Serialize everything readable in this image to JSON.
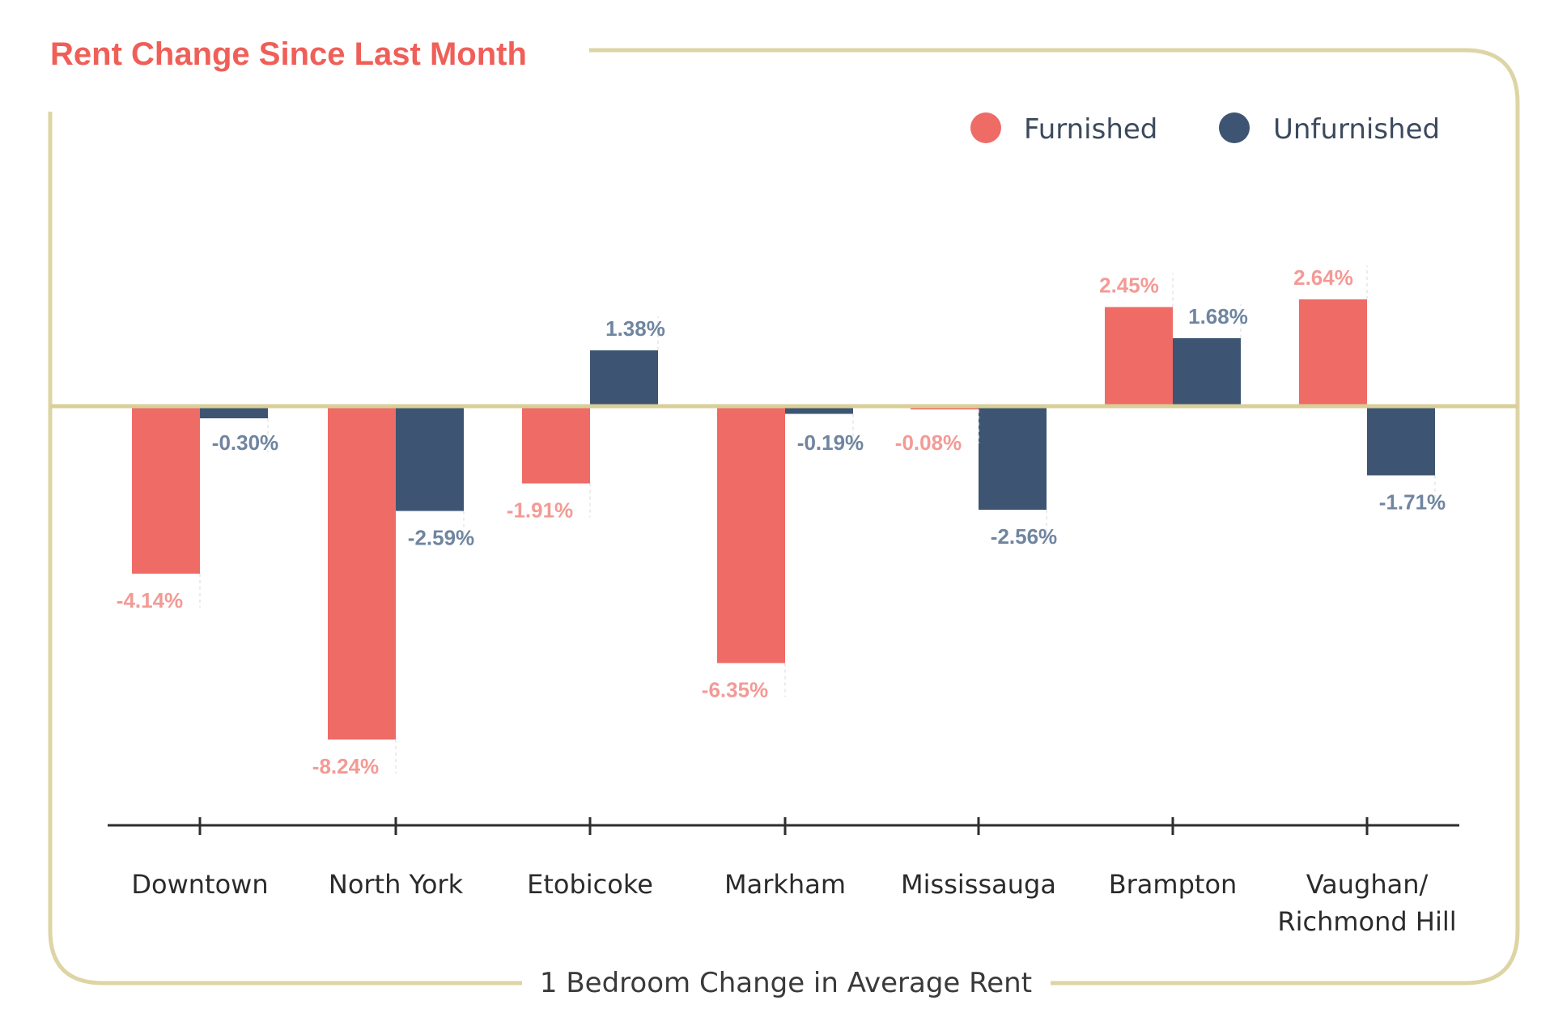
{
  "chart_data": {
    "type": "bar",
    "title": "Rent Change Since Last Month",
    "xlabel": "1 Bedroom Change in Average Rent",
    "categories": [
      [
        "Downtown"
      ],
      [
        "North York"
      ],
      [
        "Etobicoke"
      ],
      [
        "Markham"
      ],
      [
        "Mississauga"
      ],
      [
        "Brampton"
      ],
      [
        "Vaughan/",
        "Richmond Hill"
      ]
    ],
    "series": [
      {
        "name": "Furnished",
        "color": "#ef6b66",
        "label_color": "#f39a95",
        "values": [
          -4.14,
          -8.24,
          -1.91,
          -6.35,
          -0.08,
          2.45,
          2.64
        ],
        "labels": [
          "-4.14%",
          "-8.24%",
          "-1.91%",
          "-6.35%",
          "-0.08%",
          "2.45%",
          "2.64%"
        ]
      },
      {
        "name": "Unfurnished",
        "color": "#3d5573",
        "label_color": "#6f85a0",
        "values": [
          -0.3,
          -2.59,
          1.38,
          -0.19,
          -2.56,
          1.68,
          -1.71
        ],
        "labels": [
          "-0.30%",
          "-2.59%",
          "1.38%",
          "-0.19%",
          "-2.56%",
          "1.68%",
          "-1.71%"
        ]
      }
    ],
    "legend_position": "top-right",
    "grid": false,
    "colors": {
      "title": "#ef5f58",
      "frame": "#ded4a4",
      "baseline": "#d9cf98",
      "axis": "#2e2e2e"
    }
  }
}
